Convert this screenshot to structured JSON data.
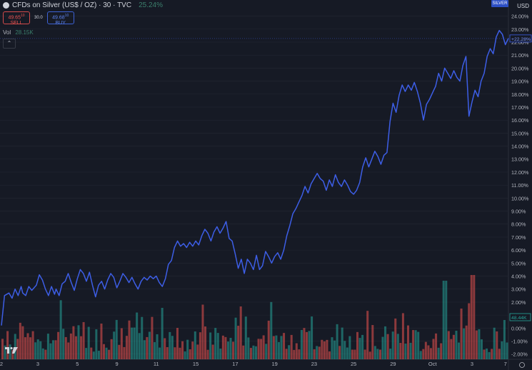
{
  "header": {
    "title": "CFDs on Silver (US$ / OZ) · 30 · TVC",
    "change": "25.24%",
    "sell_price": "49.65",
    "sell_price_sup": "10",
    "sell_label": "SELL",
    "spread": "30.0",
    "buy_price": "49.68",
    "buy_price_sup": "10",
    "buy_label": "BUY",
    "volume_label": "Vol",
    "volume_value": "28.15K",
    "collapse_icon": "chevron-up-icon"
  },
  "axis": {
    "currency": "USD",
    "symbol_tag": "SILVER",
    "price_tag": "+22.28%",
    "volume_tag": "48.44K"
  },
  "colors": {
    "background": "#161a25",
    "line": "#3d5ee6",
    "volume_up": "#26a69a",
    "volume_down": "#ef5350",
    "grid": "#232733",
    "text": "#b2b5be"
  },
  "chart_data": {
    "type": "line",
    "series": [
      {
        "values": [
          [
            0.0,
            0.2
          ],
          [
            1.0,
            2.5
          ],
          [
            2.5,
            2.7
          ],
          [
            3.5,
            2.3
          ],
          [
            4.5,
            3.0
          ],
          [
            5.5,
            2.5
          ],
          [
            6.5,
            3.2
          ],
          [
            7.0,
            2.7
          ],
          [
            8.0,
            2.5
          ],
          [
            9.0,
            3.2
          ],
          [
            10.0,
            2.9
          ],
          [
            11.5,
            3.3
          ],
          [
            12.5,
            4.1
          ],
          [
            13.5,
            3.7
          ],
          [
            14.5,
            3.0
          ],
          [
            15.5,
            2.5
          ],
          [
            16.5,
            3.2
          ],
          [
            17.5,
            2.6
          ],
          [
            18.0,
            3.0
          ],
          [
            19.0,
            2.5
          ],
          [
            20.0,
            3.4
          ],
          [
            21.0,
            3.6
          ],
          [
            22.0,
            4.2
          ],
          [
            23.0,
            3.5
          ],
          [
            24.0,
            2.9
          ],
          [
            25.0,
            3.8
          ],
          [
            26.0,
            4.5
          ],
          [
            27.0,
            4.2
          ],
          [
            28.0,
            3.6
          ],
          [
            29.0,
            4.3
          ],
          [
            30.0,
            3.3
          ],
          [
            31.0,
            2.4
          ],
          [
            32.0,
            3.3
          ],
          [
            33.0,
            3.6
          ],
          [
            34.0,
            3.0
          ],
          [
            35.0,
            3.7
          ],
          [
            36.0,
            4.2
          ],
          [
            37.0,
            3.9
          ],
          [
            38.0,
            3.1
          ],
          [
            39.0,
            3.6
          ],
          [
            40.0,
            4.2
          ],
          [
            41.0,
            3.9
          ],
          [
            42.0,
            3.5
          ],
          [
            43.0,
            3.9
          ],
          [
            44.0,
            3.4
          ],
          [
            45.0,
            3.0
          ],
          [
            46.0,
            3.6
          ],
          [
            47.0,
            3.9
          ],
          [
            48.0,
            3.7
          ],
          [
            49.0,
            4.0
          ],
          [
            50.0,
            3.8
          ],
          [
            51.0,
            4.0
          ],
          [
            52.0,
            3.5
          ],
          [
            53.0,
            3.2
          ],
          [
            54.0,
            3.8
          ],
          [
            55.0,
            4.9
          ],
          [
            56.0,
            5.2
          ],
          [
            57.0,
            6.2
          ],
          [
            58.0,
            6.7
          ],
          [
            59.0,
            6.3
          ],
          [
            60.0,
            6.5
          ],
          [
            61.0,
            6.2
          ],
          [
            62.0,
            6.6
          ],
          [
            63.0,
            6.3
          ],
          [
            64.0,
            6.7
          ],
          [
            65.0,
            6.4
          ],
          [
            66.0,
            7.1
          ],
          [
            67.0,
            7.6
          ],
          [
            68.0,
            7.3
          ],
          [
            69.0,
            6.7
          ],
          [
            70.0,
            7.4
          ],
          [
            71.0,
            7.8
          ],
          [
            72.0,
            7.3
          ],
          [
            73.0,
            7.7
          ],
          [
            74.0,
            8.2
          ],
          [
            75.0,
            6.9
          ],
          [
            76.0,
            6.7
          ],
          [
            77.0,
            5.7
          ],
          [
            78.0,
            4.6
          ],
          [
            79.0,
            5.3
          ],
          [
            80.0,
            4.2
          ],
          [
            81.0,
            5.3
          ],
          [
            82.0,
            5.0
          ],
          [
            83.0,
            4.5
          ],
          [
            84.0,
            5.6
          ],
          [
            85.0,
            4.5
          ],
          [
            86.0,
            4.8
          ],
          [
            87.0,
            5.9
          ],
          [
            88.0,
            5.5
          ],
          [
            89.0,
            5.0
          ],
          [
            90.0,
            5.5
          ],
          [
            91.0,
            5.8
          ],
          [
            92.0,
            5.3
          ],
          [
            93.0,
            6.0
          ],
          [
            94.0,
            7.1
          ],
          [
            95.0,
            7.9
          ],
          [
            96.0,
            8.8
          ],
          [
            97.0,
            9.2
          ],
          [
            98.0,
            9.7
          ],
          [
            99.0,
            10.2
          ],
          [
            100.0,
            10.9
          ],
          [
            101.0,
            10.4
          ],
          [
            102.0,
            11.1
          ],
          [
            103.0,
            11.5
          ],
          [
            104.0,
            11.9
          ],
          [
            105.0,
            11.5
          ],
          [
            106.0,
            11.3
          ],
          [
            107.0,
            10.6
          ],
          [
            108.0,
            11.4
          ],
          [
            109.0,
            10.9
          ],
          [
            110.0,
            11.8
          ],
          [
            111.0,
            11.2
          ],
          [
            112.0,
            10.9
          ],
          [
            113.0,
            11.4
          ],
          [
            114.0,
            11.0
          ],
          [
            115.0,
            10.5
          ],
          [
            116.0,
            10.3
          ],
          [
            117.0,
            10.6
          ],
          [
            118.0,
            11.2
          ],
          [
            119.0,
            12.4
          ],
          [
            120.0,
            13.1
          ],
          [
            121.0,
            12.4
          ],
          [
            122.0,
            13.0
          ],
          [
            123.0,
            13.6
          ],
          [
            124.0,
            13.2
          ],
          [
            125.0,
            12.6
          ],
          [
            126.0,
            13.3
          ],
          [
            127.0,
            13.5
          ],
          [
            128.0,
            15.9
          ],
          [
            129.0,
            17.3
          ],
          [
            130.0,
            16.6
          ],
          [
            131.0,
            17.9
          ],
          [
            132.0,
            18.7
          ],
          [
            133.0,
            18.2
          ],
          [
            134.0,
            18.7
          ],
          [
            135.0,
            18.3
          ],
          [
            136.0,
            18.9
          ],
          [
            137.0,
            18.2
          ],
          [
            138.0,
            17.3
          ],
          [
            139.0,
            16.0
          ],
          [
            140.0,
            17.2
          ],
          [
            141.0,
            17.6
          ],
          [
            142.0,
            18.1
          ],
          [
            143.0,
            18.6
          ],
          [
            144.0,
            19.6
          ],
          [
            145.0,
            19.0
          ],
          [
            146.0,
            20.0
          ],
          [
            147.0,
            19.6
          ],
          [
            148.0,
            19.2
          ],
          [
            149.0,
            19.8
          ],
          [
            150.0,
            19.3
          ],
          [
            151.0,
            19.0
          ],
          [
            152.0,
            20.2
          ],
          [
            153.0,
            20.9
          ],
          [
            154.0,
            16.3
          ],
          [
            155.0,
            17.4
          ],
          [
            156.0,
            18.3
          ],
          [
            157.0,
            17.8
          ],
          [
            158.0,
            19.0
          ],
          [
            159.0,
            19.6
          ],
          [
            160.0,
            20.9
          ],
          [
            161.0,
            21.5
          ],
          [
            162.0,
            21.1
          ],
          [
            163.0,
            22.4
          ],
          [
            164.0,
            22.9
          ],
          [
            165.0,
            22.6
          ],
          [
            166.0,
            21.8
          ],
          [
            167.0,
            22.3
          ]
        ]
      }
    ],
    "x_tick_labels": [
      "2",
      "3",
      "5",
      "9",
      "11",
      "15",
      "17",
      "19",
      "23",
      "25",
      "29",
      "Oct",
      "3",
      "7"
    ],
    "x_tick_positions": [
      0,
      12,
      25,
      38,
      51,
      64,
      77,
      90,
      103,
      116,
      129,
      142,
      155,
      166
    ],
    "y_ticks": [
      -2,
      -1,
      0,
      1,
      2,
      3,
      4,
      5,
      6,
      7,
      8,
      9,
      10,
      11,
      12,
      13,
      14,
      15,
      16,
      17,
      18,
      19,
      20,
      21,
      22,
      23,
      24
    ],
    "y_tick_labels": [
      "-2.00%",
      "-1.00%",
      "0.00%",
      "1.00%",
      "2.00%",
      "3.00%",
      "4.00%",
      "5.00%",
      "6.00%",
      "7.00%",
      "8.00%",
      "9.00%",
      "10.00%",
      "11.00%",
      "12.00%",
      "13.00%",
      "14.00%",
      "15.00%",
      "16.00%",
      "17.00%",
      "18.00%",
      "19.00%",
      "20.00%",
      "21.00%",
      "22.00%",
      "23.00%",
      "24.00%"
    ],
    "ylim": [
      -2.4,
      24.8
    ],
    "xlim": [
      0,
      167
    ],
    "last_value": 22.28,
    "volume_last": 48.44
  }
}
